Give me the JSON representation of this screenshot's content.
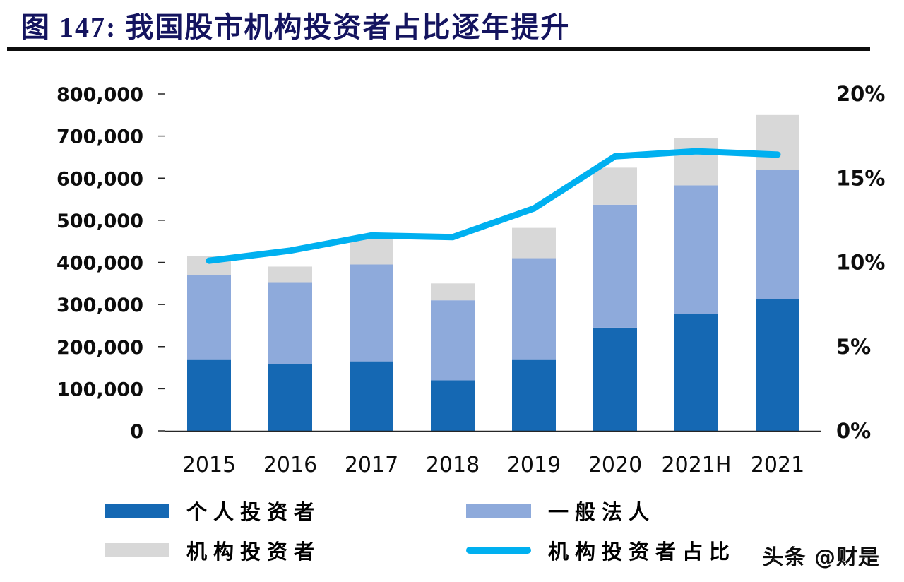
{
  "page": {
    "title": "图 147: 我国股市机构投资者占比逐年提升",
    "watermark": "头条 @财是"
  },
  "chart_data": {
    "type": "bar",
    "subtype": "stacked-bars-with-line-overlay",
    "title": "图 147: 我国股市机构投资者占比逐年提升",
    "categories": [
      "2015",
      "2016",
      "2017",
      "2018",
      "2019",
      "2020",
      "2021H",
      "2021"
    ],
    "series": [
      {
        "name": "个人投资者",
        "type": "bar",
        "stack": "total",
        "color": "#1568B3",
        "values": [
          170000,
          158000,
          165000,
          120000,
          170000,
          245000,
          278000,
          312000
        ]
      },
      {
        "name": "一般法人",
        "type": "bar",
        "stack": "total",
        "color": "#8EAADB",
        "values": [
          200000,
          195000,
          230000,
          190000,
          240000,
          292000,
          305000,
          308000
        ]
      },
      {
        "name": "机构投资者",
        "type": "bar",
        "stack": "total",
        "color": "#D8D8D8",
        "values": [
          45000,
          37000,
          60000,
          40000,
          72000,
          88000,
          112000,
          130000
        ]
      },
      {
        "name": "机构投资者占比",
        "type": "line",
        "yaxis": "right",
        "color": "#00B0F0",
        "values": [
          10.1,
          10.7,
          11.6,
          11.5,
          13.2,
          16.3,
          16.6,
          16.4
        ]
      }
    ],
    "left_axis": {
      "min": 0,
      "max": 800000,
      "step": 100000,
      "tick_labels": [
        "0",
        "100,000",
        "200,000",
        "300,000",
        "400,000",
        "500,000",
        "600,000",
        "700,000",
        "800,000"
      ]
    },
    "right_axis": {
      "min": 0,
      "max": 20,
      "step": 5,
      "tick_labels": [
        "0%",
        "5%",
        "10%",
        "15%",
        "20%"
      ]
    },
    "grid": false,
    "legend_position": "bottom"
  }
}
